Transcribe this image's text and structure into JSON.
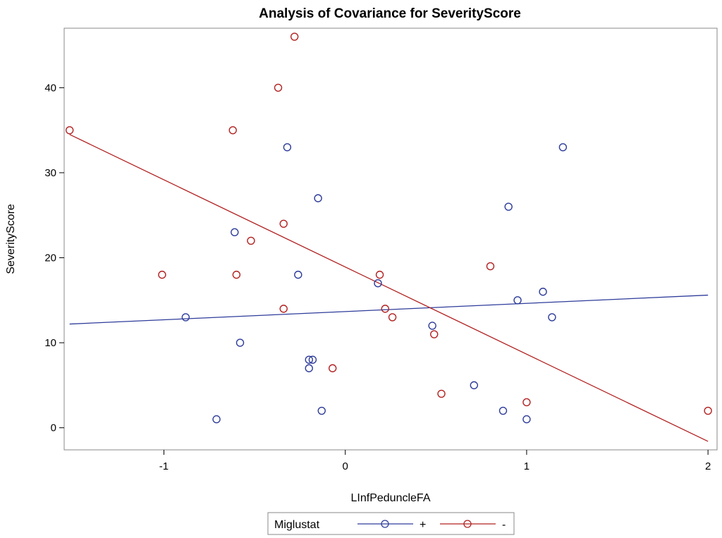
{
  "chart_data": {
    "type": "scatter",
    "title": "Analysis of Covariance for SeverityScore",
    "xlabel": "LInfPeduncleFA",
    "ylabel": "SeverityScore",
    "xlim": [
      -1.55,
      2.05
    ],
    "ylim": [
      -2.6,
      47.0
    ],
    "xticks": [
      -1,
      0,
      1,
      2
    ],
    "yticks": [
      0,
      10,
      20,
      30,
      40
    ],
    "grid": false,
    "legend": {
      "title": "Miglustat",
      "position": "bottom-center",
      "entries": [
        "+",
        "-"
      ]
    },
    "series": [
      {
        "name": "+",
        "color": "#2E3C9A",
        "points": [
          [
            -0.88,
            13
          ],
          [
            -0.71,
            1
          ],
          [
            -0.61,
            23
          ],
          [
            -0.58,
            10
          ],
          [
            -0.32,
            33
          ],
          [
            -0.26,
            18
          ],
          [
            -0.2,
            8
          ],
          [
            -0.2,
            7
          ],
          [
            -0.18,
            8
          ],
          [
            -0.15,
            27
          ],
          [
            -0.13,
            2
          ],
          [
            0.18,
            17
          ],
          [
            0.48,
            12
          ],
          [
            0.71,
            5
          ],
          [
            0.87,
            2
          ],
          [
            0.9,
            26
          ],
          [
            0.95,
            15
          ],
          [
            1.0,
            1
          ],
          [
            1.09,
            16
          ],
          [
            1.14,
            13
          ],
          [
            1.2,
            33
          ]
        ],
        "fit": {
          "x": [
            -1.52,
            2.0
          ],
          "y": [
            12.2,
            15.6
          ]
        }
      },
      {
        "name": "-",
        "color": "#B22222",
        "points": [
          [
            -1.52,
            35
          ],
          [
            -1.01,
            18
          ],
          [
            -0.62,
            35
          ],
          [
            -0.6,
            18
          ],
          [
            -0.52,
            22
          ],
          [
            -0.37,
            40
          ],
          [
            -0.34,
            24
          ],
          [
            -0.34,
            14
          ],
          [
            -0.28,
            46
          ],
          [
            -0.07,
            7
          ],
          [
            0.19,
            18
          ],
          [
            0.22,
            14
          ],
          [
            0.26,
            13
          ],
          [
            0.49,
            11
          ],
          [
            0.53,
            4
          ],
          [
            0.8,
            19
          ],
          [
            1.0,
            3
          ],
          [
            2.0,
            2
          ]
        ],
        "fit": {
          "x": [
            -1.52,
            2.0
          ],
          "y": [
            34.5,
            -1.6
          ]
        }
      }
    ]
  }
}
